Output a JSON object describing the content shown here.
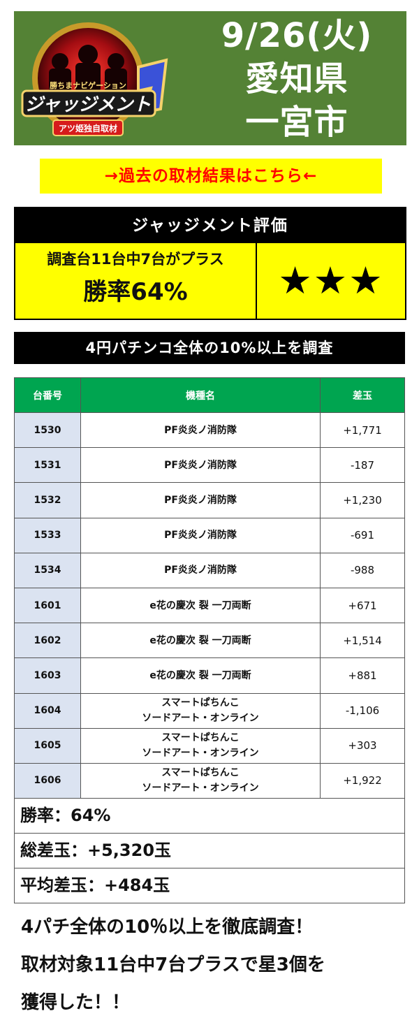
{
  "header": {
    "logo_text": "ジャッジメント",
    "logo_sub": "アツ姫独自取材",
    "logo_tag": "勝ちまナビゲーション",
    "date": "9/26(火)",
    "prefecture": "愛知県",
    "city": "一宮市",
    "bg_color": "#548235"
  },
  "past_link": {
    "label": "→過去の取材結果はこちら←"
  },
  "evaluation": {
    "title": "ジャッジメント評価",
    "summary": "調査台11台中7台がプラス",
    "win_rate": "勝率64%",
    "stars": "★★★"
  },
  "survey_bar": {
    "label": "4円パチンコ全体の10%以上を調査"
  },
  "table": {
    "headers": [
      "台番号",
      "機種名",
      "差玉"
    ],
    "rows": [
      {
        "num": "1530",
        "model": "PF炎炎ノ消防隊",
        "model2": "",
        "diff": "+1,771"
      },
      {
        "num": "1531",
        "model": "PF炎炎ノ消防隊",
        "model2": "",
        "diff": "-187"
      },
      {
        "num": "1532",
        "model": "PF炎炎ノ消防隊",
        "model2": "",
        "diff": "+1,230"
      },
      {
        "num": "1533",
        "model": "PF炎炎ノ消防隊",
        "model2": "",
        "diff": "-691"
      },
      {
        "num": "1534",
        "model": "PF炎炎ノ消防隊",
        "model2": "",
        "diff": "-988"
      },
      {
        "num": "1601",
        "model": "e花の慶次 裂 一刀両断",
        "model2": "",
        "diff": "+671"
      },
      {
        "num": "1602",
        "model": "e花の慶次 裂 一刀両断",
        "model2": "",
        "diff": "+1,514"
      },
      {
        "num": "1603",
        "model": "e花の慶次 裂 一刀両断",
        "model2": "",
        "diff": "+881"
      },
      {
        "num": "1604",
        "model": "スマートぱちんこ",
        "model2": "ソードアート・オンライン",
        "diff": "-1,106"
      },
      {
        "num": "1605",
        "model": "スマートぱちんこ",
        "model2": "ソードアート・オンライン",
        "diff": "+303"
      },
      {
        "num": "1606",
        "model": "スマートぱちんこ",
        "model2": "ソードアート・オンライン",
        "diff": "+1,922"
      }
    ]
  },
  "summary": {
    "win_rate": "勝率：64%",
    "total": "総差玉：+5,320玉",
    "average": "平均差玉：+484玉"
  },
  "footer": {
    "line1": "4パチ全体の10％以上を徹底調査！",
    "line2": "取材対象11台中7台プラスで星3個を",
    "line3": "獲得した！！"
  }
}
